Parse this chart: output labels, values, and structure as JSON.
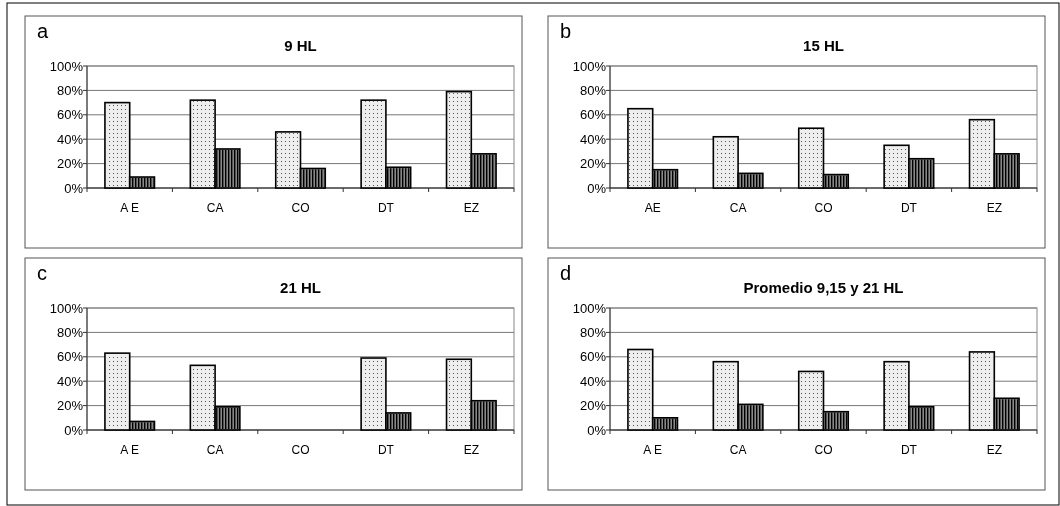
{
  "chart_data": [
    {
      "type": "bar",
      "title": "9 HL",
      "annotations": [
        "a"
      ],
      "categories": [
        "A E",
        "CA",
        "CO",
        "DT",
        "EZ"
      ],
      "series": [
        {
          "color": "#eeeeee",
          "values": [
            70,
            72,
            46,
            72,
            79
          ]
        },
        {
          "color": "#888888",
          "values": [
            9,
            32,
            16,
            17,
            28
          ]
        }
      ],
      "ylim": [
        0,
        100
      ],
      "yticks": [
        {
          "value": 0,
          "label": "0%"
        },
        {
          "value": 20,
          "label": "20%"
        },
        {
          "value": 40,
          "label": "40%"
        },
        {
          "value": 60,
          "label": "60%"
        },
        {
          "value": 80,
          "label": "80%"
        },
        {
          "value": 100,
          "label": "100%"
        }
      ],
      "grid": "y"
    },
    {
      "type": "bar",
      "title": "15 HL",
      "annotations": [
        "b"
      ],
      "categories": [
        "AE",
        "CA",
        "CO",
        "DT",
        "EZ"
      ],
      "series": [
        {
          "color": "#eeeeee",
          "values": [
            65,
            42,
            49,
            35,
            56
          ]
        },
        {
          "color": "#888888",
          "values": [
            15,
            12,
            11,
            24,
            28
          ]
        }
      ],
      "ylim": [
        0,
        100
      ],
      "yticks": [
        {
          "value": 0,
          "label": "0%"
        },
        {
          "value": 20,
          "label": "20%"
        },
        {
          "value": 40,
          "label": "40%"
        },
        {
          "value": 60,
          "label": "60%"
        },
        {
          "value": 80,
          "label": "80%"
        },
        {
          "value": 100,
          "label": "100%"
        }
      ],
      "grid": "y"
    },
    {
      "type": "bar",
      "title": "21 HL",
      "annotations": [
        "c"
      ],
      "categories": [
        "A E",
        "CA",
        "CO",
        "DT",
        "EZ"
      ],
      "series": [
        {
          "color": "#eeeeee",
          "values": [
            63,
            53,
            null,
            59,
            58
          ]
        },
        {
          "color": "#888888",
          "values": [
            7,
            19,
            null,
            14,
            24
          ]
        }
      ],
      "ylim": [
        0,
        100
      ],
      "yticks": [
        {
          "value": 0,
          "label": "0%"
        },
        {
          "value": 20,
          "label": "20%"
        },
        {
          "value": 40,
          "label": "40%"
        },
        {
          "value": 60,
          "label": "60%"
        },
        {
          "value": 80,
          "label": "80%"
        },
        {
          "value": 100,
          "label": "100%"
        }
      ],
      "grid": "y"
    },
    {
      "type": "bar",
      "title": "Promedio 9,15 y 21 HL",
      "annotations": [
        "d"
      ],
      "categories": [
        "A E",
        "CA",
        "CO",
        "DT",
        "EZ"
      ],
      "series": [
        {
          "color": "#eeeeee",
          "values": [
            66,
            56,
            48,
            56,
            64
          ]
        },
        {
          "color": "#888888",
          "values": [
            10,
            21,
            15,
            19,
            26
          ]
        }
      ],
      "ylim": [
        0,
        100
      ],
      "yticks": [
        {
          "value": 0,
          "label": "0%"
        },
        {
          "value": 20,
          "label": "20%"
        },
        {
          "value": 40,
          "label": "40%"
        },
        {
          "value": 60,
          "label": "60%"
        },
        {
          "value": 80,
          "label": "80%"
        },
        {
          "value": 100,
          "label": "100%"
        }
      ],
      "grid": "y"
    }
  ]
}
